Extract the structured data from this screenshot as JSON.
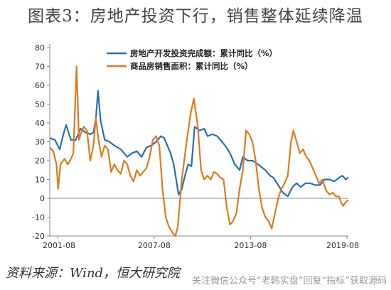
{
  "title": "图表3：房地产投资下行，销售整体延续降温",
  "source": "资料来源：Wind，恒大研究院",
  "watermark": "关注微信公众号“老韩实盘”回复“指标”获取源码",
  "chart_data": {
    "type": "line",
    "ylim": [
      -20,
      80
    ],
    "yticks": [
      "-20",
      "-10",
      "0",
      "10",
      "20",
      "30",
      "40",
      "50",
      "60",
      "70",
      "80"
    ],
    "xlim": [
      2001.08,
      2019.67
    ],
    "xticks": [
      {
        "label": "2001-08",
        "x": 2001.58
      },
      {
        "label": "2007-08",
        "x": 2007.58
      },
      {
        "label": "2013-08",
        "x": 2013.58
      },
      {
        "label": "2019-08",
        "x": 2019.58
      }
    ],
    "grid": false,
    "legend_position": "top-center",
    "series": [
      {
        "name": "房地产开发投资完成额：累计同比（%）",
        "color": "#2670b8",
        "points": [
          [
            2001.08,
            32
          ],
          [
            2001.4,
            31
          ],
          [
            2001.7,
            26
          ],
          [
            2001.9,
            33
          ],
          [
            2002.1,
            39
          ],
          [
            2002.4,
            31
          ],
          [
            2002.7,
            31
          ],
          [
            2003.0,
            37
          ],
          [
            2003.3,
            35
          ],
          [
            2003.6,
            34
          ],
          [
            2003.8,
            35
          ],
          [
            2003.95,
            42
          ],
          [
            2004.08,
            57
          ],
          [
            2004.25,
            41
          ],
          [
            2004.5,
            31
          ],
          [
            2004.8,
            30
          ],
          [
            2005.1,
            28
          ],
          [
            2005.5,
            26
          ],
          [
            2005.9,
            22
          ],
          [
            2006.2,
            24
          ],
          [
            2006.5,
            25
          ],
          [
            2006.8,
            22
          ],
          [
            2007.1,
            27
          ],
          [
            2007.4,
            28
          ],
          [
            2007.7,
            30
          ],
          [
            2008.0,
            33
          ],
          [
            2008.2,
            32
          ],
          [
            2008.4,
            28
          ],
          [
            2008.6,
            24
          ],
          [
            2008.8,
            18
          ],
          [
            2008.95,
            10
          ],
          [
            2009.1,
            2
          ],
          [
            2009.3,
            5
          ],
          [
            2009.5,
            12
          ],
          [
            2009.7,
            18
          ],
          [
            2009.9,
            17
          ],
          [
            2010.1,
            38
          ],
          [
            2010.4,
            36
          ],
          [
            2010.7,
            37
          ],
          [
            2010.9,
            33
          ],
          [
            2011.2,
            34
          ],
          [
            2011.5,
            33
          ],
          [
            2011.8,
            30
          ],
          [
            2012.0,
            28
          ],
          [
            2012.3,
            24
          ],
          [
            2012.6,
            18
          ],
          [
            2012.9,
            15
          ],
          [
            2013.1,
            22
          ],
          [
            2013.4,
            20
          ],
          [
            2013.7,
            20
          ],
          [
            2013.9,
            19
          ],
          [
            2014.2,
            17
          ],
          [
            2014.5,
            15
          ],
          [
            2014.8,
            12
          ],
          [
            2015.0,
            11
          ],
          [
            2015.3,
            7
          ],
          [
            2015.6,
            3
          ],
          [
            2015.9,
            1
          ],
          [
            2016.2,
            6
          ],
          [
            2016.45,
            8
          ],
          [
            2016.7,
            6
          ],
          [
            2017.0,
            8
          ],
          [
            2017.3,
            8
          ],
          [
            2017.6,
            7
          ],
          [
            2017.9,
            7
          ],
          [
            2018.2,
            10
          ],
          [
            2018.5,
            10
          ],
          [
            2018.8,
            9
          ],
          [
            2019.1,
            11
          ],
          [
            2019.3,
            12
          ],
          [
            2019.5,
            10
          ],
          [
            2019.67,
            11
          ]
        ]
      },
      {
        "name": "商品房销售面积：累计同比（%）",
        "color": "#e07a1f",
        "points": [
          [
            2001.08,
            27
          ],
          [
            2001.3,
            25
          ],
          [
            2001.5,
            18
          ],
          [
            2001.6,
            5
          ],
          [
            2001.75,
            18
          ],
          [
            2002.0,
            21
          ],
          [
            2002.2,
            18
          ],
          [
            2002.4,
            21
          ],
          [
            2002.55,
            24
          ],
          [
            2002.75,
            70
          ],
          [
            2002.9,
            31
          ],
          [
            2003.0,
            34
          ],
          [
            2003.2,
            38
          ],
          [
            2003.4,
            36
          ],
          [
            2003.6,
            20
          ],
          [
            2003.8,
            28
          ],
          [
            2003.95,
            43
          ],
          [
            2004.1,
            32
          ],
          [
            2004.3,
            22
          ],
          [
            2004.5,
            28
          ],
          [
            2004.7,
            26
          ],
          [
            2004.9,
            14
          ],
          [
            2005.1,
            18
          ],
          [
            2005.3,
            15
          ],
          [
            2005.5,
            13
          ],
          [
            2005.7,
            20
          ],
          [
            2005.9,
            18
          ],
          [
            2006.1,
            12
          ],
          [
            2006.3,
            9
          ],
          [
            2006.5,
            15
          ],
          [
            2006.7,
            12
          ],
          [
            2006.9,
            14
          ],
          [
            2007.1,
            16
          ],
          [
            2007.3,
            22
          ],
          [
            2007.5,
            31
          ],
          [
            2007.7,
            33
          ],
          [
            2007.9,
            28
          ],
          [
            2008.1,
            5
          ],
          [
            2008.3,
            -10
          ],
          [
            2008.5,
            -15
          ],
          [
            2008.7,
            -18
          ],
          [
            2008.9,
            -20
          ],
          [
            2009.05,
            -15
          ],
          [
            2009.3,
            10
          ],
          [
            2009.6,
            30
          ],
          [
            2009.85,
            45
          ],
          [
            2010.05,
            53
          ],
          [
            2010.3,
            38
          ],
          [
            2010.5,
            15
          ],
          [
            2010.7,
            10
          ],
          [
            2010.9,
            12
          ],
          [
            2011.1,
            10
          ],
          [
            2011.3,
            14
          ],
          [
            2011.5,
            13
          ],
          [
            2011.7,
            11
          ],
          [
            2011.9,
            10
          ],
          [
            2012.1,
            -5
          ],
          [
            2012.3,
            -14
          ],
          [
            2012.5,
            -12
          ],
          [
            2012.7,
            -8
          ],
          [
            2012.9,
            5
          ],
          [
            2013.1,
            15
          ],
          [
            2013.3,
            36
          ],
          [
            2013.5,
            34
          ],
          [
            2013.7,
            30
          ],
          [
            2013.9,
            20
          ],
          [
            2014.1,
            5
          ],
          [
            2014.3,
            -5
          ],
          [
            2014.5,
            -10
          ],
          [
            2014.7,
            -12
          ],
          [
            2014.9,
            -16
          ],
          [
            2015.1,
            -8
          ],
          [
            2015.3,
            0
          ],
          [
            2015.5,
            5
          ],
          [
            2015.7,
            8
          ],
          [
            2015.9,
            12
          ],
          [
            2016.1,
            30
          ],
          [
            2016.25,
            36
          ],
          [
            2016.45,
            30
          ],
          [
            2016.65,
            24
          ],
          [
            2016.85,
            26
          ],
          [
            2017.05,
            22
          ],
          [
            2017.25,
            20
          ],
          [
            2017.45,
            16
          ],
          [
            2017.65,
            12
          ],
          [
            2017.85,
            8
          ],
          [
            2018.05,
            10
          ],
          [
            2018.3,
            4
          ],
          [
            2018.5,
            2
          ],
          [
            2018.7,
            3
          ],
          [
            2018.9,
            1
          ],
          [
            2019.1,
            1
          ],
          [
            2019.2,
            -2
          ],
          [
            2019.35,
            -4
          ],
          [
            2019.5,
            -2
          ],
          [
            2019.67,
            -1
          ]
        ]
      }
    ]
  }
}
